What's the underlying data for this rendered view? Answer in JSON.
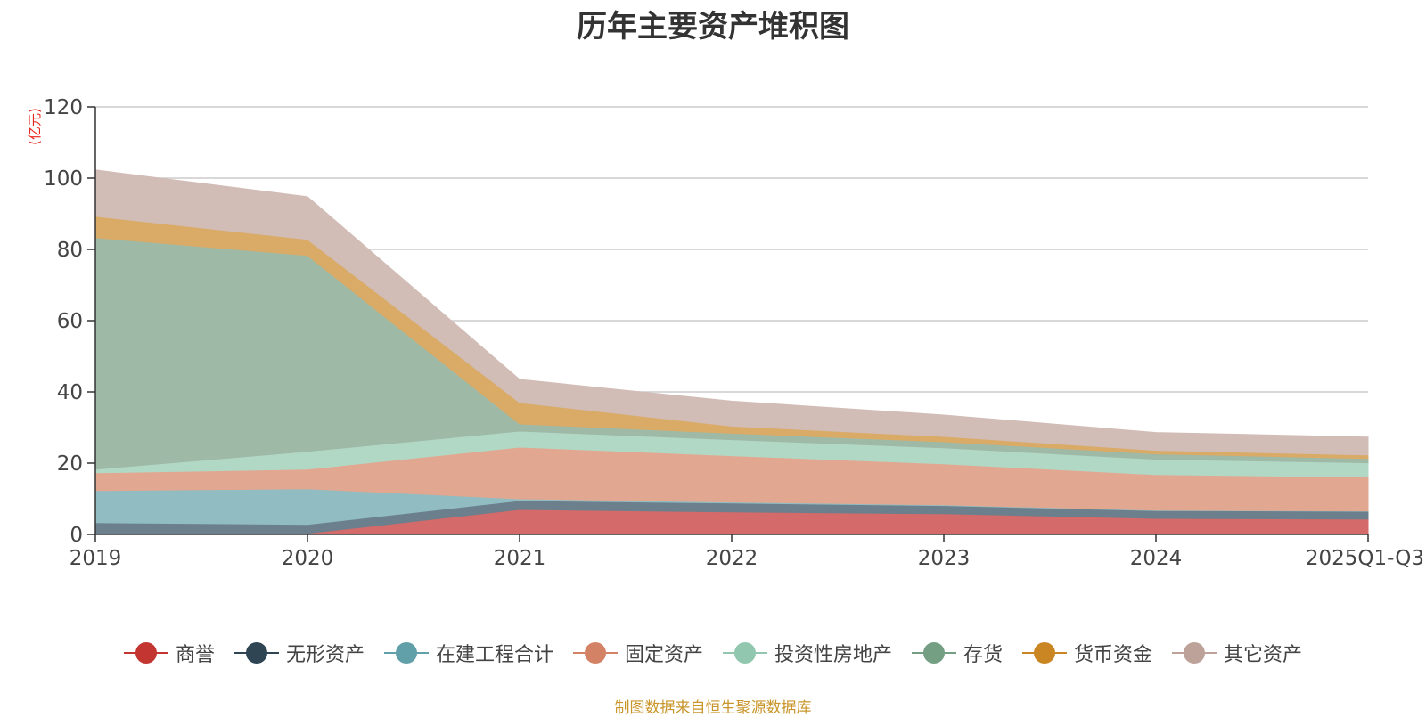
{
  "chart_data": {
    "type": "area",
    "stacked": true,
    "title": "历年主要资产堆积图",
    "ylabel": "(亿元)",
    "xlabel": "",
    "ylim": [
      0,
      120
    ],
    "yticks": [
      0,
      20,
      40,
      60,
      80,
      100,
      120
    ],
    "categories": [
      "2019",
      "2020",
      "2021",
      "2022",
      "2023",
      "2024",
      "2025Q1-Q3"
    ],
    "series": [
      {
        "name": "商誉",
        "color": "#c23531",
        "fill": "#d46a6a",
        "values": [
          0.3,
          0.3,
          7.0,
          6.3,
          5.8,
          4.5,
          4.3
        ]
      },
      {
        "name": "无形资产",
        "color": "#2f4554",
        "fill": "#6b7f8c",
        "values": [
          3.0,
          2.5,
          2.5,
          2.5,
          2.3,
          2.2,
          2.2
        ]
      },
      {
        "name": "在建工程合计",
        "color": "#61a0a8",
        "fill": "#90bcc2",
        "values": [
          9.0,
          10.0,
          0.5,
          0.3,
          0.2,
          0.1,
          0.1
        ]
      },
      {
        "name": "固定资产",
        "color": "#d48265",
        "fill": "#e2a790",
        "values": [
          5.0,
          5.5,
          14.5,
          13.0,
          11.5,
          10.0,
          9.5
        ]
      },
      {
        "name": "投资性房地产",
        "color": "#91c7ae",
        "fill": "#b1d8c5",
        "values": [
          1.0,
          5.0,
          4.5,
          4.5,
          4.5,
          4.3,
          4.0
        ]
      },
      {
        "name": "存货",
        "color": "#749f83",
        "fill": "#9fb9a7",
        "values": [
          65.0,
          55.0,
          2.0,
          1.8,
          1.7,
          1.5,
          1.2
        ]
      },
      {
        "name": "货币资金",
        "color": "#ca8622",
        "fill": "#d9ab67",
        "values": [
          6.0,
          4.5,
          6.0,
          2.0,
          1.5,
          1.0,
          1.0
        ]
      },
      {
        "name": "其它资产",
        "color": "#bda29a",
        "fill": "#d1bcb6",
        "values": [
          13.0,
          12.0,
          6.5,
          7.0,
          6.0,
          5.0,
          5.0
        ]
      }
    ]
  },
  "source_note": "制图数据来自恒生聚源数据库"
}
